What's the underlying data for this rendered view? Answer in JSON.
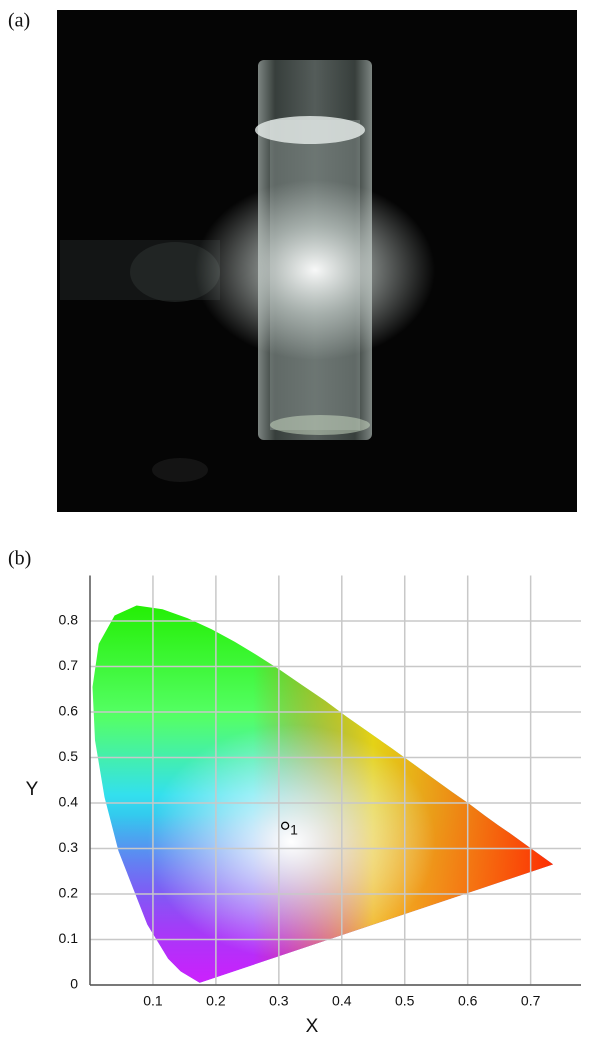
{
  "photo_label": "(a)",
  "chart_data": {
    "type": "scatter",
    "panel_label": "(b)",
    "x_label": "X",
    "y_label": "Y",
    "series": [
      {
        "name": "1",
        "color": "#000000",
        "x": [
          0.31
        ],
        "values": [
          0.35
        ]
      }
    ],
    "xlim": [
      0,
      0.78
    ],
    "ylim": [
      0,
      0.9
    ],
    "xticks": [
      0.1,
      0.2,
      0.3,
      0.4,
      0.5,
      0.6,
      0.7
    ],
    "yticks": [
      0,
      0.1,
      0.2,
      0.3,
      0.4,
      0.5,
      0.6,
      0.7,
      0.8
    ],
    "grid": true
  }
}
